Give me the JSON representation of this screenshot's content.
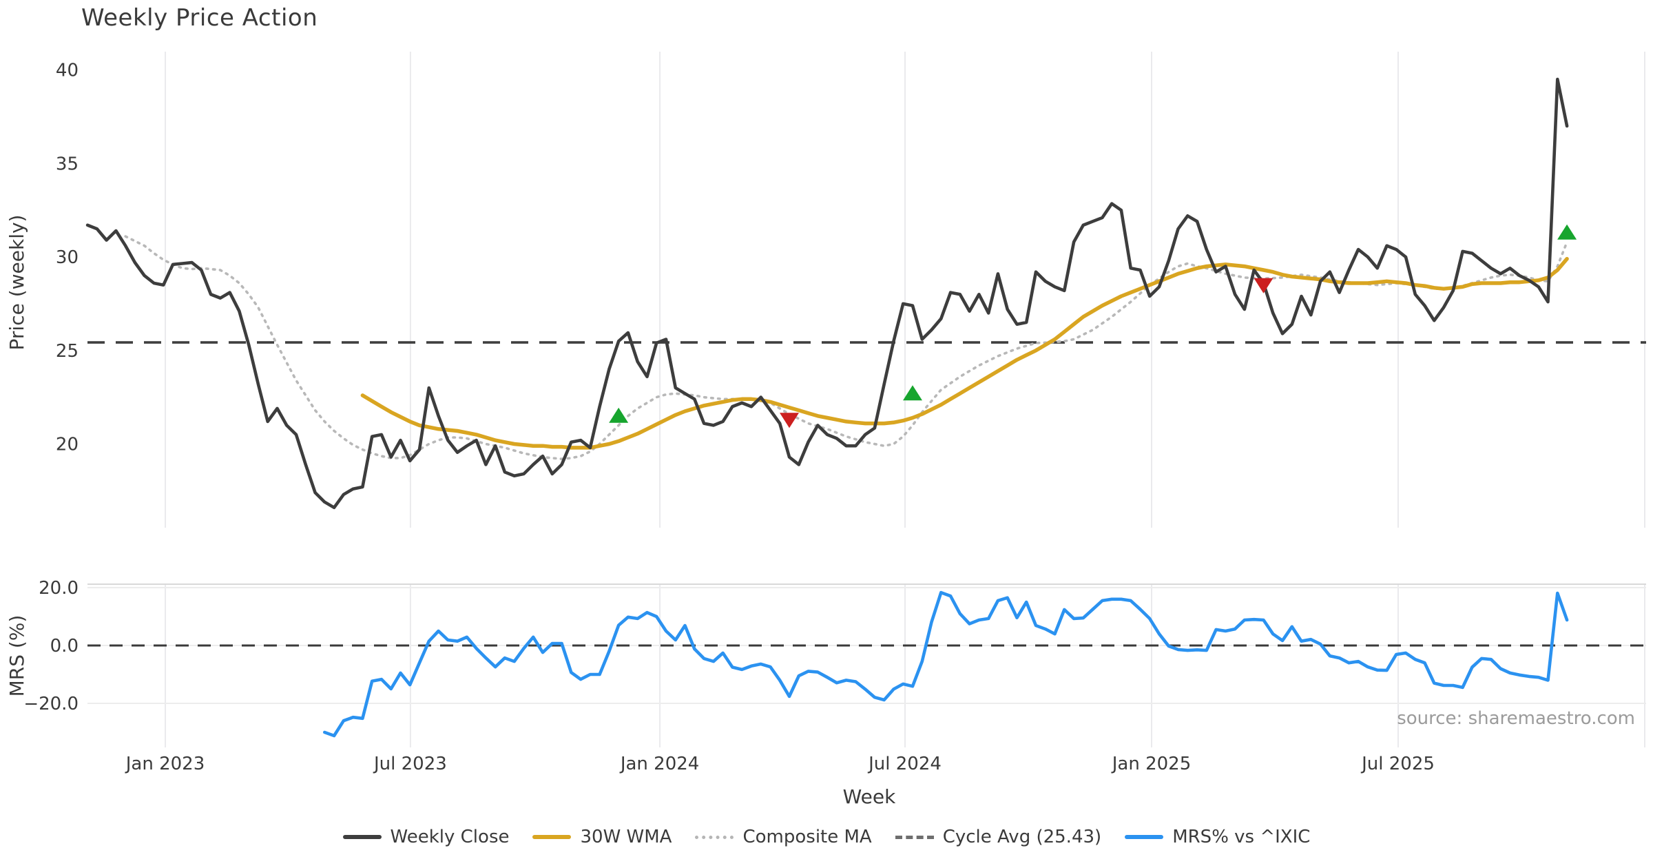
{
  "title": "Weekly Price Action",
  "source_note": "source: sharemaestro.com",
  "axes": {
    "price_axis_label": "Price (weekly)",
    "mrs_axis_label": "MRS (%)",
    "x_axis_label": "Week",
    "price_tick_labels": [
      "40",
      "35",
      "30",
      "25",
      "20"
    ],
    "mrs_tick_labels": [
      "20.0",
      "0.0",
      "−20.0"
    ],
    "x_tick_labels": [
      "Jan 2023",
      "Jul 2023",
      "Jan 2024",
      "Jul 2024",
      "Jan 2025",
      "Jul 2025"
    ]
  },
  "legend": {
    "items": [
      {
        "label": "Weekly Close",
        "swatch": "solid",
        "color": "#3d3d3d"
      },
      {
        "label": "30W WMA",
        "swatch": "solid",
        "color": "#d9a521"
      },
      {
        "label": "Composite MA",
        "swatch": "dotted",
        "color": "#b5b5b5"
      },
      {
        "label": "Cycle Avg (25.43)",
        "swatch": "dashed",
        "color": "#6e6e6e"
      },
      {
        "label": "MRS% vs ^IXIC",
        "swatch": "solid",
        "color": "#2b92f0"
      }
    ]
  },
  "colors": {
    "close": "#3d3d3d",
    "wma": "#d9a521",
    "composite": "#b8b8b8",
    "cycle_avg": "#3f3f3f",
    "mrs": "#2b92f0",
    "buy_marker": "#17a52e",
    "sell_marker": "#cc1f1f",
    "grid": "#eaeaed",
    "mrs_grid": "#ededed",
    "mrs_top_spine": "#d9d9d9",
    "tick_text": "#3a3a3a",
    "source_text": "#9b9b9b"
  },
  "chart_data": {
    "type": "line",
    "x_unit": "week_index",
    "x_range_weeks": [
      0,
      156
    ],
    "panels": [
      {
        "name": "price",
        "ylabel": "Price (weekly)",
        "ylim": [
          15.6,
          41.7
        ],
        "yticks": [
          40,
          35,
          30,
          25,
          20
        ],
        "grid": "vertical-only"
      },
      {
        "name": "mrs",
        "ylabel": "MRS (%)",
        "ylim": [
          -35.2,
          21.0
        ],
        "yticks": [
          20,
          0,
          -20
        ],
        "grid": "horizontal-and-vertical"
      }
    ],
    "x_ticks": [
      {
        "week": 8.2,
        "label": "Jan 2023"
      },
      {
        "week": 34.05,
        "label": "Jul 2023"
      },
      {
        "week": 60.35,
        "label": "Jan 2024"
      },
      {
        "week": 86.2,
        "label": "Jul 2024"
      },
      {
        "week": 112.2,
        "label": "Jan 2025"
      },
      {
        "week": 138.2,
        "label": "Jul 2025"
      },
      {
        "week": 164.2,
        "label": ""
      }
    ],
    "cycle_avg_value": 25.43,
    "series": [
      {
        "name": "Weekly Close",
        "panel": "price",
        "style": "solid",
        "start_week": 0,
        "values": [
          31.7,
          31.5,
          30.9,
          31.4,
          30.6,
          29.7,
          29.0,
          28.6,
          28.5,
          29.6,
          29.65,
          29.7,
          29.3,
          28.0,
          27.8,
          28.1,
          27.1,
          25.3,
          23.2,
          21.2,
          21.9,
          21.0,
          20.5,
          18.9,
          17.4,
          16.9,
          16.6,
          17.3,
          17.6,
          17.7,
          20.4,
          20.5,
          19.3,
          20.2,
          19.1,
          19.7,
          23.0,
          21.5,
          20.2,
          19.55,
          19.9,
          20.2,
          18.9,
          19.9,
          18.5,
          18.3,
          18.4,
          18.9,
          19.35,
          18.4,
          18.9,
          20.1,
          20.2,
          19.8,
          22.0,
          24.0,
          25.5,
          25.95,
          24.4,
          23.6,
          25.4,
          25.6,
          23.0,
          22.7,
          22.4,
          21.1,
          21.0,
          21.2,
          22.0,
          22.2,
          22.0,
          22.5,
          21.8,
          21.1,
          19.3,
          18.9,
          20.1,
          21.0,
          20.5,
          20.3,
          19.9,
          19.9,
          20.5,
          20.85,
          23.2,
          25.5,
          27.5,
          27.4,
          25.6,
          26.1,
          26.7,
          28.1,
          28.0,
          27.1,
          28.0,
          27.0,
          29.1,
          27.2,
          26.4,
          26.5,
          29.2,
          28.7,
          28.4,
          28.2,
          30.8,
          31.7,
          31.9,
          32.1,
          32.85,
          32.5,
          29.4,
          29.3,
          27.9,
          28.4,
          29.8,
          31.5,
          32.2,
          31.9,
          30.4,
          29.2,
          29.5,
          28.0,
          27.2,
          29.3,
          28.6,
          27.0,
          25.9,
          26.4,
          27.9,
          26.9,
          28.7,
          29.2,
          28.1,
          29.3,
          30.4,
          30.0,
          29.4,
          30.6,
          30.4,
          30.0,
          28.0,
          27.4,
          26.6,
          27.3,
          28.2,
          30.3,
          30.2,
          29.8,
          29.4,
          29.1,
          29.4,
          29.0,
          28.75,
          28.4,
          27.6,
          39.5,
          37.0
        ]
      },
      {
        "name": "30W WMA",
        "panel": "price",
        "style": "solid",
        "start_week": 29,
        "values": [
          22.6,
          22.3,
          22.0,
          21.7,
          21.45,
          21.2,
          21.0,
          20.9,
          20.8,
          20.75,
          20.7,
          20.6,
          20.5,
          20.35,
          20.2,
          20.1,
          20.0,
          19.95,
          19.9,
          19.9,
          19.85,
          19.85,
          19.8,
          19.8,
          19.8,
          19.9,
          20.0,
          20.15,
          20.35,
          20.55,
          20.8,
          21.05,
          21.3,
          21.55,
          21.75,
          21.9,
          22.05,
          22.15,
          22.25,
          22.35,
          22.4,
          22.4,
          22.35,
          22.25,
          22.1,
          21.95,
          21.8,
          21.65,
          21.5,
          21.4,
          21.3,
          21.2,
          21.15,
          21.1,
          21.1,
          21.1,
          21.15,
          21.25,
          21.4,
          21.6,
          21.85,
          22.1,
          22.4,
          22.7,
          23.0,
          23.3,
          23.6,
          23.9,
          24.2,
          24.5,
          24.75,
          25.0,
          25.3,
          25.6,
          26.0,
          26.4,
          26.8,
          27.1,
          27.4,
          27.65,
          27.9,
          28.1,
          28.3,
          28.5,
          28.7,
          28.9,
          29.1,
          29.25,
          29.4,
          29.5,
          29.55,
          29.6,
          29.55,
          29.5,
          29.4,
          29.3,
          29.2,
          29.05,
          28.95,
          28.9,
          28.85,
          28.8,
          28.7,
          28.65,
          28.6,
          28.6,
          28.6,
          28.65,
          28.7,
          28.65,
          28.6,
          28.5,
          28.45,
          28.35,
          28.3,
          28.35,
          28.4,
          28.55,
          28.6,
          28.6,
          28.6,
          28.65,
          28.65,
          28.7,
          28.75,
          28.9,
          29.3,
          29.9
        ]
      },
      {
        "name": "Composite MA",
        "panel": "price",
        "style": "dotted",
        "start_week": 4,
        "values": [
          31.1,
          30.85,
          30.6,
          30.2,
          29.85,
          29.6,
          29.4,
          29.35,
          29.4,
          29.35,
          29.3,
          29.0,
          28.6,
          28.0,
          27.3,
          26.3,
          25.3,
          24.35,
          23.4,
          22.6,
          21.8,
          21.2,
          20.7,
          20.3,
          19.95,
          19.7,
          19.5,
          19.35,
          19.25,
          19.25,
          19.4,
          19.7,
          20.0,
          20.2,
          20.35,
          20.35,
          20.3,
          20.15,
          20.0,
          19.9,
          19.8,
          19.65,
          19.5,
          19.4,
          19.3,
          19.25,
          19.2,
          19.25,
          19.35,
          19.6,
          20.0,
          20.5,
          21.0,
          21.5,
          21.9,
          22.2,
          22.5,
          22.65,
          22.7,
          22.65,
          22.6,
          22.5,
          22.45,
          22.4,
          22.4,
          22.4,
          22.4,
          22.3,
          22.2,
          21.9,
          21.6,
          21.35,
          21.1,
          20.95,
          20.8,
          20.6,
          20.4,
          20.25,
          20.1,
          20.0,
          19.9,
          20.0,
          20.4,
          21.0,
          21.7,
          22.3,
          22.9,
          23.25,
          23.6,
          23.9,
          24.2,
          24.45,
          24.7,
          24.9,
          25.1,
          25.25,
          25.4,
          25.42,
          25.45,
          25.5,
          25.6,
          25.85,
          26.1,
          26.45,
          26.8,
          27.2,
          27.6,
          28.05,
          28.5,
          28.85,
          29.2,
          29.5,
          29.65,
          29.5,
          29.4,
          29.25,
          29.1,
          29.0,
          28.9,
          28.87,
          28.85,
          28.87,
          28.9,
          28.97,
          29.05,
          28.97,
          28.9,
          28.8,
          28.7,
          28.65,
          28.6,
          28.55,
          28.5,
          28.55,
          28.6,
          28.55,
          28.5,
          28.4,
          28.3,
          28.3,
          28.3,
          28.45,
          28.6,
          28.75,
          28.9,
          29.0,
          29.05,
          29.0,
          28.9,
          28.75,
          28.7,
          29.5,
          30.8
        ]
      },
      {
        "name": "MRS% vs ^IXIC",
        "panel": "mrs",
        "style": "solid",
        "start_week": 25,
        "values": [
          -30.0,
          -31.2,
          -26.0,
          -24.8,
          -25.2,
          -12.3,
          -11.7,
          -15.0,
          -9.5,
          -13.6,
          -6.0,
          1.5,
          5.0,
          1.9,
          1.5,
          2.9,
          -1.0,
          -4.3,
          -7.4,
          -4.3,
          -5.5,
          -1.0,
          2.9,
          -2.4,
          0.7,
          0.7,
          -9.3,
          -11.7,
          -10.0,
          -10.0,
          -2.0,
          7.0,
          9.8,
          9.3,
          11.4,
          10.0,
          5.0,
          1.9,
          6.9,
          -1.2,
          -4.5,
          -5.5,
          -2.6,
          -7.5,
          -8.3,
          -7.1,
          -6.4,
          -7.4,
          -12.0,
          -17.6,
          -10.5,
          -8.9,
          -9.2,
          -11.0,
          -12.9,
          -12.0,
          -12.5,
          -15.1,
          -17.9,
          -18.8,
          -15.1,
          -13.3,
          -14.1,
          -5.5,
          8.1,
          18.3,
          17.1,
          11.0,
          7.5,
          8.8,
          9.3,
          15.5,
          16.5,
          9.6,
          15.0,
          6.9,
          5.7,
          4.0,
          12.4,
          9.3,
          9.5,
          12.5,
          15.5,
          16.0,
          16.0,
          15.5,
          12.5,
          9.3,
          4.0,
          -0.2,
          -1.4,
          -1.7,
          -1.5,
          -1.7,
          5.5,
          5.0,
          5.7,
          8.8,
          9.0,
          8.8,
          4.0,
          1.7,
          6.5,
          1.5,
          2.1,
          0.5,
          -3.6,
          -4.3,
          -6.0,
          -5.5,
          -7.4,
          -8.5,
          -8.6,
          -3.1,
          -2.6,
          -4.8,
          -6.0,
          -13.0,
          -13.8,
          -13.8,
          -14.5,
          -7.5,
          -4.5,
          -4.8,
          -8.0,
          -9.5,
          -10.2,
          -10.7,
          -11.0,
          -12.0,
          18.1,
          8.8
        ]
      }
    ],
    "markers": {
      "buy": [
        {
          "week": 56,
          "value": 21.5
        },
        {
          "week": 87,
          "value": 22.7
        },
        {
          "week": 156,
          "value": 31.3
        }
      ],
      "sell": [
        {
          "week": 74,
          "value": 21.3
        },
        {
          "week": 124,
          "value": 28.5
        }
      ]
    }
  }
}
